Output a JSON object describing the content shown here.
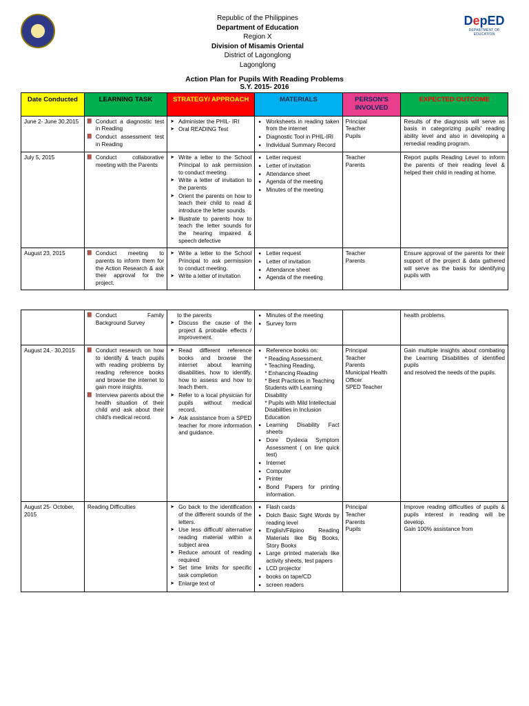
{
  "header": {
    "line1": "Republic of the Philippines",
    "line2": "Department of Education",
    "line3": "Region X",
    "line4": "Division of Misamis Oriental",
    "line5": "District of Lagonglong",
    "line6": "Lagonglong",
    "deped_sub": "DEPARTMENT OF EDUCATION"
  },
  "title": "Action Plan for Pupils With Reading Problems",
  "school_year": "S.Y. 2015- 2016",
  "columns": {
    "date": {
      "label": "Date Conducted",
      "bg": "#ffff00",
      "fg": "#000000"
    },
    "task": {
      "label": "LEARNING TASK",
      "bg": "#00b050",
      "fg": "#000000"
    },
    "strategy": {
      "label": "STRATEGY/ APPROACH",
      "bg": "#ff0000",
      "fg": "#ffff00"
    },
    "materials": {
      "label": "MATERIALS",
      "bg": "#00b0f0",
      "fg": "#1f2a44"
    },
    "persons": {
      "label": "PERSON'S INVOLVED",
      "bg": "#e83e8c",
      "fg": "#0a2a5c"
    },
    "outcome": {
      "label": "EXPECTED OUTCOME",
      "bg": "#00b050",
      "fg": "#ff0000"
    }
  },
  "rows": [
    {
      "date": "June 2- June 30,2015",
      "task": [
        "Conduct a diagnostic test in Reading",
        "Conduct assessment test in Reading"
      ],
      "strategy": [
        "Administer the PHIL- IRI",
        "Oral READING Test"
      ],
      "materials": [
        "Worksheets in reading taken from the internet",
        "Diagnostic Tool in PHIL-IRI",
        "Individual Summary Record"
      ],
      "persons": [
        "Principal",
        "Teacher",
        "Pupils"
      ],
      "outcome": "Results of the diagnosis will serve as basis in categorizing pupils' reading ability level and also in developing a remedial reading program."
    },
    {
      "date": "July 5, 2015",
      "task": [
        "Conduct collaborative meeting with the Parents"
      ],
      "strategy": [
        "Write a letter to the School Principal to ask permission to conduct meeting.",
        "Write a letter of invitation to the parents",
        "Orient the parents on how to teach their child to read & introduce the letter sounds",
        "Illustrate to parents how to teach the letter sounds for the hearing impaired & speech defective"
      ],
      "materials": [
        "Letter request",
        "Letter of invitation",
        "Attendance sheet",
        "Agenda of the meeting",
        "Minutes of the meeting"
      ],
      "persons": [
        "Teacher",
        "Parents"
      ],
      "outcome": "Report pupils Reading Level to inform the parents of their reading level & helped their child in reading at home."
    },
    {
      "date": "August 23, 2015",
      "task": [
        "Conduct meeting to parents to inform them for the Action Research & ask their approval for the project."
      ],
      "strategy": [
        "Write a letter to the School Principal to ask permission to conduct meeting.",
        "Write a letter of invitation"
      ],
      "materials": [
        "Letter request",
        "Letter of invitation",
        "Attendance sheet",
        "Agenda of the meeting"
      ],
      "persons": [
        "Teacher",
        "Parents"
      ],
      "outcome": "Ensure approval of the parents for their support of the project & data gathered will serve as the basis for identifying pupils with"
    }
  ],
  "rows2": [
    {
      "date": "",
      "task": [
        "Conduct Family Background Survey"
      ],
      "strategy_pre": "to the parents",
      "strategy": [
        "Discuss the cause of the project & probable effects / improvement."
      ],
      "materials": [
        "Minutes of the meeting",
        "Survey form"
      ],
      "persons": [],
      "outcome": "health problems."
    },
    {
      "date": "August 24,- 30,2015",
      "task": [
        "Conduct research on how to identify & teach pupils with reading problems by reading reference books and browse the internet to gain more insights.",
        "Interview parents about the health situation of their child and ask about their child's medical record."
      ],
      "strategy": [
        "Read different reference books and browse the internet about learning disabilities, how to identify, how to assess and how to teach them.",
        "Refer to a local physician for pupils without medical record.",
        "Ask assistance from a SPED teacher for more information and guidance."
      ],
      "materials_pre": "Reference books on:",
      "materials_lines": [
        "* Reading Assessment,",
        "* Teaching Reading,",
        "* Enhancing Reading",
        "* Best Practices in Teaching Students with Learning Disability",
        "* Pupils with Mild Intellectual Disabilities in Inclusion Education"
      ],
      "materials": [
        "Learning Disability Fact sheets",
        "Dore Dyslexia Symptom Assessment ( on line quick test)",
        "Internet",
        "Computer",
        "Printer",
        "Bond Papers for printing information."
      ],
      "persons": [
        "Principal",
        "Teacher",
        "Parents",
        "Municipal Health Officer",
        "SPED Teacher"
      ],
      "outcome": "Gain multiple insights about combating the Learning Disabilities of identified pupils\nand resolved the needs of the pupils."
    },
    {
      "date": "August 25- October, 2015",
      "task_plain": "Reading Difficulties",
      "strategy": [
        "Go back to the identification of the different sounds of the letters.",
        "Use less difficult/ alternative reading material within a subject area",
        "Reduce amount of reading required",
        "Set time limits for specific task completion",
        "Enlarge text of"
      ],
      "materials": [
        "Flash cards",
        "Dolch Basic Sight Words by reading level",
        "English/Filipino Reading Materials like Big Books, Story Books",
        "Large printed materials like activity sheets, test papers",
        "LCD projector",
        "books on tape/CD",
        "screen readers"
      ],
      "persons": [
        "Principal",
        "Teacher",
        "Parents",
        "Pupils"
      ],
      "outcome": "Improve reading difficulties of pupils & pupils interest in reading will be develop.\nGain 100% assistance from"
    }
  ]
}
